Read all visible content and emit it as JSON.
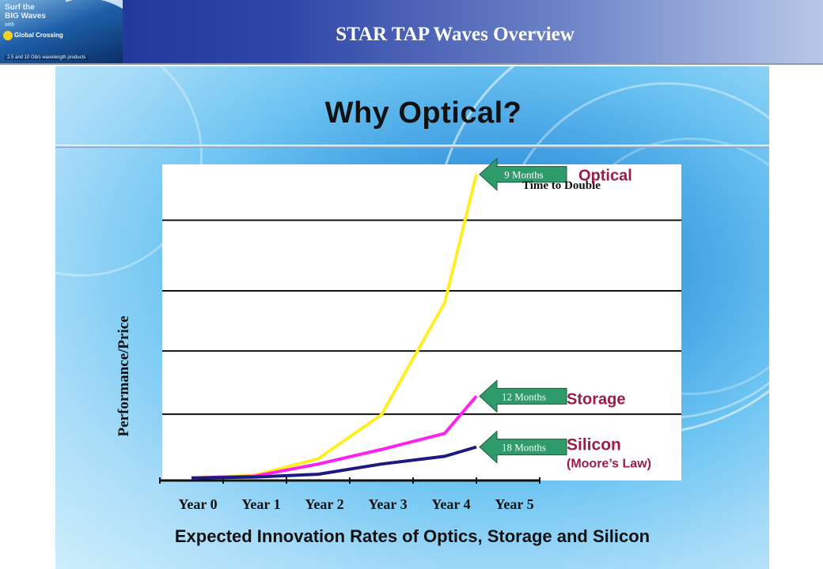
{
  "header": {
    "title": "STAR TAP Waves Overview",
    "logo": {
      "line1": "Surf the",
      "line2": "BIG Waves",
      "line3": "with",
      "brand": "Global Crossing",
      "tagline": "2.5 and 10 Gb/s wavelength products"
    }
  },
  "slide": {
    "title": "Why Optical?",
    "subtitle": "Expected Innovation Rates of Optics, Storage and Silicon"
  },
  "chart_data": {
    "type": "line",
    "title": "Why Optical?",
    "subtitle": "Expected Innovation Rates of Optics, Storage and Silicon",
    "xlabel": "",
    "ylabel": "Performance/Price",
    "categories": [
      "Year 0",
      "Year 1",
      "Year 2",
      "Year 3",
      "Year 4",
      "Year 5"
    ],
    "x": [
      0,
      1,
      2,
      3,
      4,
      5
    ],
    "ylim": [
      0,
      100
    ],
    "grid": true,
    "legend_heading": "Time to Double",
    "series": [
      {
        "name": "Optical",
        "color": "#ffee22",
        "x": [
          0,
          1,
          2,
          3,
          4,
          4.5
        ],
        "values": [
          0.3,
          1.2,
          6.5,
          20.7,
          56.9,
          98.3
        ],
        "badge": "9 Months",
        "sublabel": "",
        "label_color": "#9b1b4a"
      },
      {
        "name": "Storage",
        "color": "#ff22ee",
        "x": [
          0,
          1,
          2,
          3,
          4,
          4.5
        ],
        "values": [
          0.3,
          0.9,
          4.8,
          9.5,
          14.7,
          26.7
        ],
        "badge": "12 Months",
        "sublabel": "",
        "label_color": "#9b1b4a"
      },
      {
        "name": "Silicon",
        "color": "#1a1a80",
        "x": [
          0,
          1,
          2,
          3,
          4,
          4.5
        ],
        "values": [
          0.3,
          0.6,
          1.5,
          4.8,
          7.3,
          10.3
        ],
        "badge": "18 Months",
        "sublabel": "(Moore’s Law)",
        "label_color": "#9b1b4a"
      }
    ],
    "badge_color": "#2f9a6a"
  }
}
